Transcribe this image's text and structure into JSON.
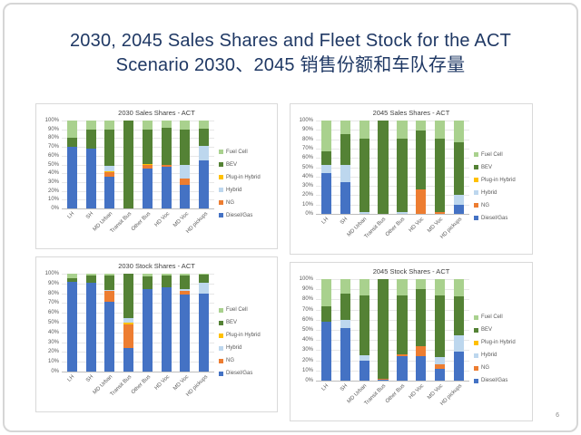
{
  "slide": {
    "title_line1": "2030, 2045 Sales Shares and Fleet Stock for the ACT",
    "title_line2": "Scenario 2030、2045 销售份额和车队存量",
    "title_color": "#1F3864",
    "page_number": "6"
  },
  "palette": {
    "fuel_cell": "#A9D18E",
    "bev": "#548235",
    "plug_in_hybrid": "#FFC000",
    "hybrid": "#BDD7EE",
    "ng": "#ED7D31",
    "diesel_gas": "#4472C4"
  },
  "chart_data": [
    {
      "type": "bar",
      "stacked": true,
      "title": "2030 Sales Shares - ACT",
      "categories": [
        "LH",
        "SH",
        "MD Urban",
        "Transit Bus",
        "Other Bus",
        "HD Voc",
        "MD Voc",
        "HD pickups"
      ],
      "series": [
        {
          "name": "Diesel/Gas",
          "color": "#4472C4",
          "values": [
            70,
            68,
            36,
            0,
            45,
            47,
            27,
            55
          ]
        },
        {
          "name": "NG",
          "color": "#ED7D31",
          "values": [
            0,
            0,
            5,
            0,
            5,
            2,
            7,
            0
          ]
        },
        {
          "name": "Plug-in Hybrid",
          "color": "#FFC000",
          "values": [
            0,
            0,
            1,
            0,
            1,
            1,
            0,
            0
          ]
        },
        {
          "name": "Hybrid",
          "color": "#BDD7EE",
          "values": [
            0,
            0,
            7,
            0,
            0,
            0,
            16,
            16
          ]
        },
        {
          "name": "BEV",
          "color": "#548235",
          "values": [
            10,
            22,
            41,
            100,
            39,
            42,
            40,
            20
          ]
        },
        {
          "name": "Fuel Cell",
          "color": "#A9D18E",
          "values": [
            20,
            10,
            10,
            0,
            10,
            8,
            10,
            9
          ]
        }
      ],
      "ylim": [
        0,
        100
      ],
      "ytick_labels": [
        "100%",
        "90%",
        "80%",
        "70%",
        "60%",
        "50%",
        "40%",
        "30%",
        "20%",
        "10%",
        "0%"
      ],
      "legend": [
        "Fuel Cell",
        "BEV",
        "Plug-in Hybrid",
        "Hybrid",
        "NG",
        "Diesel/Gas"
      ],
      "legend_position": "right",
      "grid": true
    },
    {
      "type": "bar",
      "stacked": true,
      "title": "2045 Sales Shares - ACT",
      "categories": [
        "LH",
        "SH",
        "MD Urban",
        "Transit Bus",
        "Other Bus",
        "HD Voc",
        "MD Voc",
        "HD pickups"
      ],
      "series": [
        {
          "name": "Diesel/Gas",
          "color": "#4472C4",
          "values": [
            44,
            34,
            0,
            0,
            0,
            0,
            0,
            10
          ]
        },
        {
          "name": "NG",
          "color": "#ED7D31",
          "values": [
            0,
            0,
            0,
            0,
            0,
            26,
            2,
            0
          ]
        },
        {
          "name": "Plug-in Hybrid",
          "color": "#FFC000",
          "values": [
            0,
            0,
            0,
            0,
            0,
            0,
            0,
            0
          ]
        },
        {
          "name": "Hybrid",
          "color": "#BDD7EE",
          "values": [
            8,
            18,
            2,
            0,
            2,
            0,
            0,
            10
          ]
        },
        {
          "name": "BEV",
          "color": "#548235",
          "values": [
            15,
            33,
            79,
            100,
            79,
            63,
            79,
            57
          ]
        },
        {
          "name": "Fuel Cell",
          "color": "#A9D18E",
          "values": [
            33,
            15,
            19,
            0,
            19,
            11,
            19,
            23
          ]
        }
      ],
      "ylim": [
        0,
        100
      ],
      "ytick_labels": [
        "100%",
        "90%",
        "80%",
        "70%",
        "60%",
        "50%",
        "40%",
        "30%",
        "20%",
        "10%",
        "0%"
      ],
      "legend": [
        "Fuel Cell",
        "BEV",
        "Plug-in Hybrid",
        "Hybrid",
        "NG",
        "Diesel/Gas"
      ],
      "legend_position": "right",
      "grid": true
    },
    {
      "type": "bar",
      "stacked": true,
      "title": "2030 Stock Shares - ACT",
      "categories": [
        "LH",
        "SH",
        "MD Urban",
        "Transit Bus",
        "Other Bus",
        "HD Voc",
        "MD Voc",
        "HD pickups"
      ],
      "series": [
        {
          "name": "Diesel/Gas",
          "color": "#4472C4",
          "values": [
            92,
            91,
            71,
            24,
            84,
            86,
            79,
            80
          ]
        },
        {
          "name": "NG",
          "color": "#ED7D31",
          "values": [
            0,
            0,
            11,
            24,
            0,
            0,
            3,
            0
          ]
        },
        {
          "name": "Plug-in Hybrid",
          "color": "#FFC000",
          "values": [
            0,
            0,
            0,
            2,
            0,
            0,
            0,
            0
          ]
        },
        {
          "name": "Hybrid",
          "color": "#BDD7EE",
          "values": [
            0,
            0,
            1,
            5,
            0,
            0,
            2,
            11
          ]
        },
        {
          "name": "BEV",
          "color": "#548235",
          "values": [
            3,
            7,
            15,
            45,
            13,
            12,
            14,
            8
          ]
        },
        {
          "name": "Fuel Cell",
          "color": "#A9D18E",
          "values": [
            5,
            2,
            2,
            0,
            3,
            2,
            2,
            1
          ]
        }
      ],
      "ylim": [
        0,
        100
      ],
      "ytick_labels": [
        "100%",
        "90%",
        "80%",
        "70%",
        "60%",
        "50%",
        "40%",
        "30%",
        "20%",
        "10%",
        "0%"
      ],
      "legend": [
        "Fuel Cell",
        "BEV",
        "Plug-in Hybrid",
        "Hybrid",
        "NG",
        "Diesel/Gas"
      ],
      "legend_position": "right",
      "grid": true
    },
    {
      "type": "bar",
      "stacked": true,
      "title": "2045 Stock Shares - ACT",
      "categories": [
        "LH",
        "SH",
        "MD Urban",
        "Transit Bus",
        "Other Bus",
        "HD Voc",
        "MD Voc",
        "HD pickups"
      ],
      "series": [
        {
          "name": "Diesel/Gas",
          "color": "#4472C4",
          "values": [
            58,
            52,
            20,
            1,
            24,
            24,
            12,
            29
          ]
        },
        {
          "name": "NG",
          "color": "#ED7D31",
          "values": [
            0,
            0,
            0,
            1,
            2,
            10,
            4,
            0
          ]
        },
        {
          "name": "Plug-in Hybrid",
          "color": "#FFC000",
          "values": [
            0,
            0,
            0,
            0,
            0,
            0,
            0,
            0
          ]
        },
        {
          "name": "Hybrid",
          "color": "#BDD7EE",
          "values": [
            0,
            8,
            5,
            0,
            0,
            0,
            7,
            16
          ]
        },
        {
          "name": "BEV",
          "color": "#548235",
          "values": [
            15,
            26,
            59,
            98,
            58,
            56,
            61,
            38
          ]
        },
        {
          "name": "Fuel Cell",
          "color": "#A9D18E",
          "values": [
            27,
            14,
            16,
            0,
            16,
            10,
            16,
            17
          ]
        }
      ],
      "ylim": [
        0,
        100
      ],
      "ytick_labels": [
        "100%",
        "90%",
        "80%",
        "70%",
        "60%",
        "50%",
        "40%",
        "30%",
        "20%",
        "10%",
        "0%"
      ],
      "legend": [
        "Fuel Cell",
        "BEV",
        "Plug-in Hybrid",
        "Hybrid",
        "NG",
        "Diesel/Gas"
      ],
      "legend_position": "right",
      "grid": true
    }
  ]
}
